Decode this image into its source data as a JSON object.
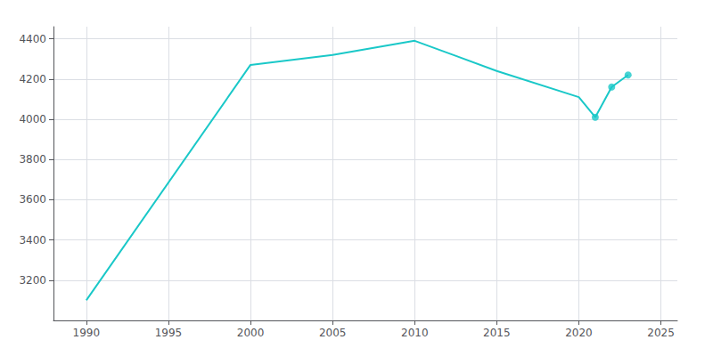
{
  "chart_data": {
    "type": "line",
    "series": [
      {
        "type": "line",
        "color": "#1ac8c8",
        "x": [
          1990,
          2000,
          2005,
          2010,
          2015,
          2020,
          2021,
          2022,
          2023
        ],
        "values": [
          3100,
          4270,
          4320,
          4390,
          4240,
          4110,
          4010,
          4160,
          4220
        ]
      },
      {
        "type": "scatter",
        "color": "#1ac8c8",
        "marker": "circle",
        "x": [
          2021,
          2022,
          2023
        ],
        "values": [
          4010,
          4160,
          4220
        ]
      }
    ],
    "xlim": [
      1988,
      2026
    ],
    "xticks": [
      1990,
      1995,
      2000,
      2005,
      2010,
      2015,
      2020,
      2025
    ],
    "ylim": [
      3000,
      4460
    ],
    "yticks": [
      3200,
      3400,
      3600,
      3800,
      4000,
      4200,
      4400
    ],
    "grid": true
  }
}
